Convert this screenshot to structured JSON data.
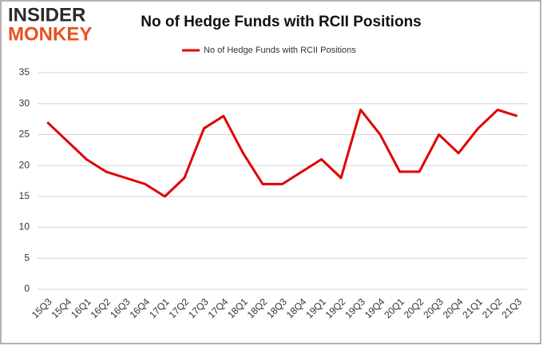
{
  "logo": [
    "INSIDER",
    "MONKEY"
  ],
  "chart_data": {
    "type": "line",
    "title": "No of Hedge Funds with RCII Positions",
    "categories": [
      "15Q3",
      "15Q4",
      "16Q1",
      "16Q2",
      "16Q3",
      "16Q4",
      "17Q1",
      "17Q2",
      "17Q3",
      "17Q4",
      "18Q1",
      "18Q2",
      "18Q3",
      "18Q4",
      "19Q1",
      "19Q2",
      "19Q3",
      "19Q4",
      "20Q1",
      "20Q2",
      "20Q3",
      "20Q4",
      "21Q1",
      "21Q2",
      "21Q3"
    ],
    "series": [
      {
        "name": "No of Hedge Funds with RCII Positions",
        "color": "#e00000",
        "values": [
          27,
          24,
          21,
          19,
          18,
          17,
          15,
          18,
          26,
          28,
          22,
          17,
          17,
          19,
          21,
          18,
          29,
          25,
          19,
          19,
          25,
          22,
          26,
          29,
          28
        ]
      }
    ],
    "ylim": [
      0,
      35
    ],
    "yticks": [
      0,
      5,
      10,
      15,
      20,
      25,
      30,
      35
    ],
    "grid": true,
    "legend": "top"
  }
}
